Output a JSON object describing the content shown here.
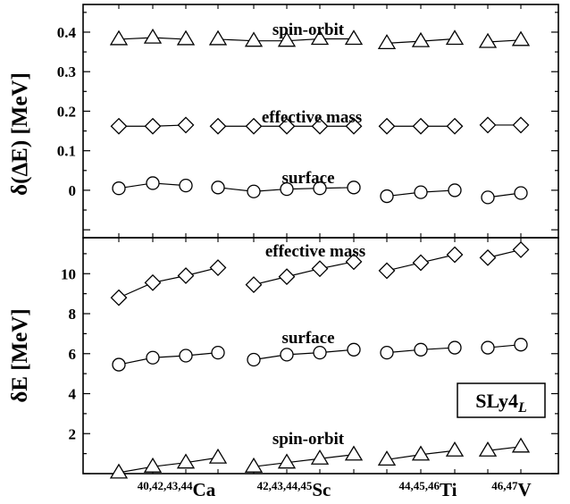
{
  "chart_data": [
    {
      "type": "line",
      "ylabel": "δ(ΔE) [MeV]",
      "ylim": [
        -0.12,
        0.47
      ],
      "yticks": [
        0,
        0.1,
        0.2,
        0.3,
        0.4
      ],
      "ytick_labels": [
        "0",
        "0.1",
        "0.2",
        "0.3",
        "0.4"
      ],
      "groups": [
        {
          "x": [
            1,
            2,
            3
          ]
        },
        {
          "x": [
            4,
            5,
            6,
            7,
            8
          ]
        },
        {
          "x": [
            9,
            10,
            11
          ]
        },
        {
          "x": [
            12,
            13
          ]
        }
      ],
      "series": [
        {
          "name": "spin-orbit",
          "marker": "triangle",
          "values": [
            0.382,
            0.386,
            0.382,
            0.382,
            0.378,
            0.378,
            0.383,
            0.383,
            0.372,
            0.377,
            0.383,
            0.375,
            0.38
          ]
        },
        {
          "name": "effective mass",
          "marker": "diamond",
          "values": [
            0.162,
            0.162,
            0.165,
            0.162,
            0.162,
            0.162,
            0.162,
            0.162,
            0.162,
            0.162,
            0.162,
            0.165,
            0.165
          ]
        },
        {
          "name": "surface",
          "marker": "circle",
          "values": [
            0.005,
            0.018,
            0.012,
            0.007,
            -0.003,
            0.003,
            0.005,
            0.007,
            -0.015,
            -0.005,
            0.0,
            -0.018,
            -0.007
          ]
        }
      ]
    },
    {
      "type": "line",
      "ylabel": "δE [MeV]",
      "ylim": [
        0,
        11.8
      ],
      "yticks": [
        2,
        4,
        6,
        8,
        10
      ],
      "ytick_labels": [
        "2",
        "4",
        "6",
        "8",
        "10"
      ],
      "legend_box": {
        "text": "SLy4",
        "subscript": "L"
      },
      "x_tick_labels": [
        {
          "mass": "40,42,43,44",
          "element": "Ca",
          "x": 2.5
        },
        {
          "mass": "42,43,44,45",
          "element": "Sc",
          "x": 6
        },
        {
          "mass": "44,45,46",
          "element": "Ti",
          "x": 10
        },
        {
          "mass": "46,47",
          "element": "V",
          "x": 12.5
        }
      ],
      "groups": [
        {
          "x": [
            1,
            2,
            3,
            4
          ]
        },
        {
          "x": [
            5,
            6,
            7,
            8
          ]
        },
        {
          "x": [
            9,
            10,
            11
          ]
        },
        {
          "x": [
            12,
            13
          ]
        }
      ],
      "series": [
        {
          "name": "effective mass",
          "marker": "diamond",
          "values": [
            8.8,
            9.55,
            9.9,
            10.3,
            9.45,
            9.85,
            10.25,
            10.6,
            10.15,
            10.55,
            10.95,
            10.8,
            11.2
          ]
        },
        {
          "name": "surface",
          "marker": "circle",
          "values": [
            5.45,
            5.8,
            5.9,
            6.05,
            5.7,
            5.95,
            6.05,
            6.2,
            6.05,
            6.2,
            6.3,
            6.3,
            6.45
          ]
        },
        {
          "name": "spin-orbit",
          "marker": "triangle",
          "values": [
            0.05,
            0.35,
            0.55,
            0.8,
            0.35,
            0.55,
            0.75,
            0.95,
            0.7,
            0.95,
            1.15,
            1.15,
            1.35
          ]
        }
      ]
    }
  ]
}
